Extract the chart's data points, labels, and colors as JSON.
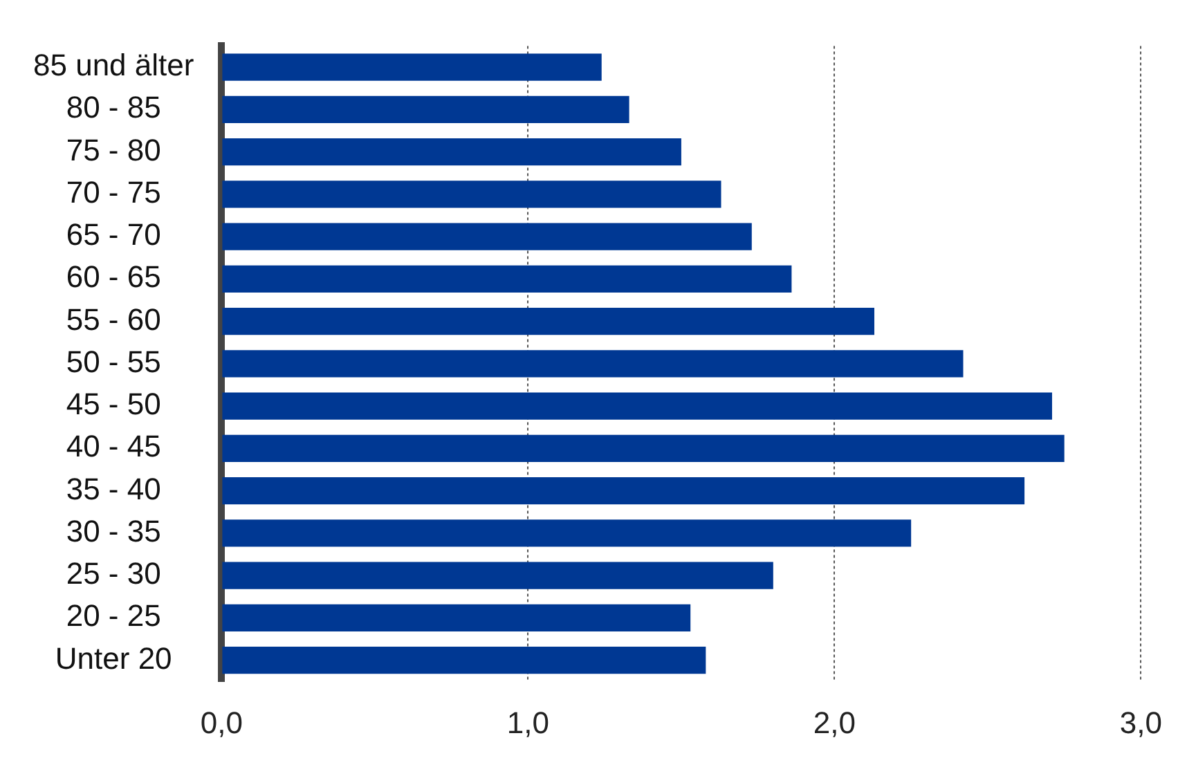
{
  "chart_data": {
    "type": "bar",
    "orientation": "horizontal",
    "categories": [
      "85 und älter",
      "80 - 85",
      "75 - 80",
      "70 - 75",
      "65 - 70",
      "60 - 65",
      "55 - 60",
      "50 - 55",
      "45 - 50",
      "40 - 45",
      "35 - 40",
      "30 - 35",
      "25 - 30",
      "20 - 25",
      "Unter 20"
    ],
    "values": [
      1.24,
      1.33,
      1.5,
      1.63,
      1.73,
      1.86,
      2.13,
      2.42,
      2.71,
      2.75,
      2.62,
      2.25,
      1.8,
      1.53,
      1.58
    ],
    "color": "#003893",
    "xlim": [
      0,
      3
    ],
    "xticks": [
      {
        "value": 0,
        "label": "0,0"
      },
      {
        "value": 1,
        "label": "1,0"
      },
      {
        "value": 2,
        "label": "2,0"
      },
      {
        "value": 3,
        "label": "3,0"
      }
    ],
    "grid": "x",
    "legend": false
  }
}
